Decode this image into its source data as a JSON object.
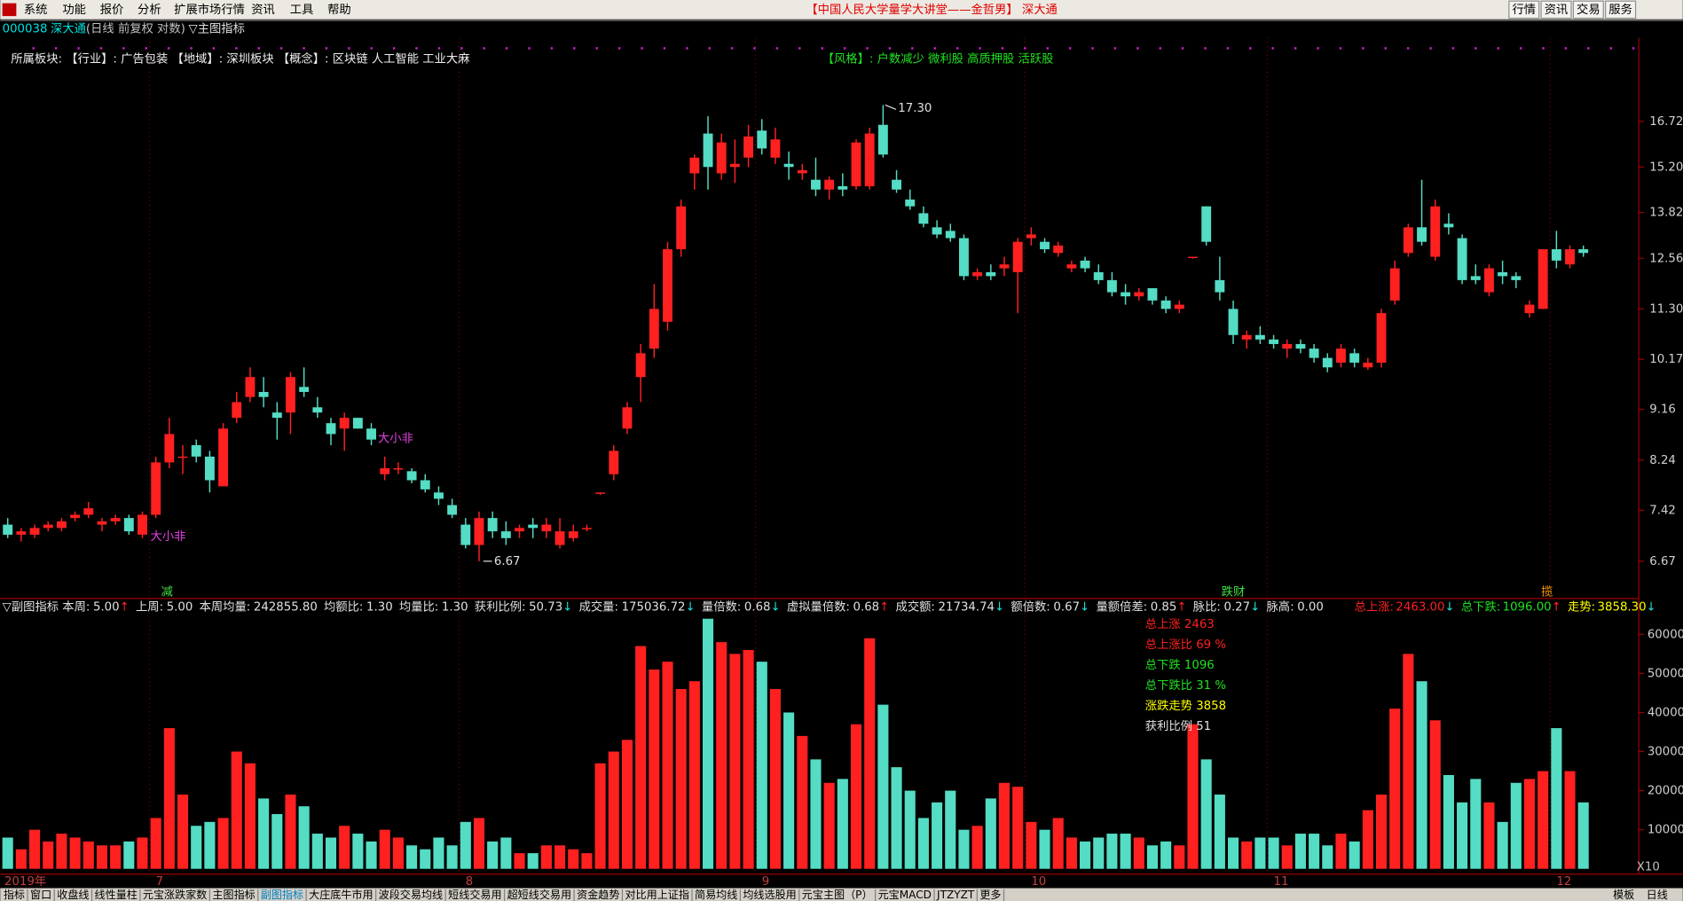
{
  "menu": [
    "系统",
    "功能",
    "报价",
    "分析",
    "扩展市场行情",
    "资讯",
    "工具",
    "帮助"
  ],
  "window_title": "【中国人民大学量学大讲堂——金哲男】 深大通",
  "window_buttons": [
    "行情",
    "资讯",
    "交易",
    "服务"
  ],
  "header": {
    "code": "000038",
    "name": "深大通",
    "mode": "(日线 前复权 对数)",
    "indicator": "▽主图指标"
  },
  "sectors": {
    "text": "所属板块: 【行业】: 广告包装 【地域】: 深圳板块 【概念】: 区块链 人工智能 工业大麻",
    "style": "【风格】: 户数减少 微利股 高质押股 活跃股"
  },
  "chart_data": [
    {
      "type": "candlestick",
      "log": true,
      "up_color": "#ff2020",
      "down_color": "#54dcc4",
      "ylim": [
        6.17,
        19.92
      ],
      "yticks": [
        6.67,
        7.42,
        8.24,
        9.16,
        10.17,
        {
          "value": 11.3,
          "label": "11.30"
        },
        12.56,
        13.82,
        {
          "value": 15.2,
          "label": "15.20"
        },
        16.72
      ],
      "categories": [
        "2019年",
        null,
        null,
        null,
        null,
        null,
        null,
        null,
        null,
        null,
        null,
        "7",
        null,
        null,
        null,
        null,
        null,
        null,
        null,
        null,
        null,
        null,
        null,
        null,
        null,
        null,
        null,
        null,
        null,
        null,
        null,
        null,
        null,
        null,
        "8",
        null,
        null,
        null,
        null,
        null,
        null,
        null,
        null,
        null,
        null,
        null,
        null,
        null,
        null,
        null,
        null,
        null,
        null,
        null,
        null,
        null,
        "9",
        null,
        null,
        null,
        null,
        null,
        null,
        null,
        null,
        null,
        null,
        null,
        null,
        null,
        null,
        null,
        null,
        null,
        null,
        null,
        "10",
        null,
        null,
        null,
        null,
        null,
        null,
        null,
        null,
        null,
        null,
        null,
        null,
        null,
        null,
        null,
        null,
        null,
        "11",
        null,
        null,
        null,
        null,
        null,
        null,
        null,
        null,
        null,
        null,
        null,
        null,
        null,
        null,
        null,
        null,
        null,
        null,
        null,
        null,
        "12",
        null,
        null
      ],
      "ohlc": [
        [
          7.2,
          7.3,
          7.0,
          7.05
        ],
        [
          7.05,
          7.15,
          6.95,
          7.1
        ],
        [
          7.05,
          7.2,
          7.0,
          7.15
        ],
        [
          7.15,
          7.25,
          7.1,
          7.2
        ],
        [
          7.15,
          7.3,
          7.1,
          7.25
        ],
        [
          7.3,
          7.4,
          7.25,
          7.35
        ],
        [
          7.35,
          7.55,
          7.3,
          7.45
        ],
        [
          7.2,
          7.3,
          7.1,
          7.25
        ],
        [
          7.25,
          7.35,
          7.2,
          7.3
        ],
        [
          7.3,
          7.35,
          7.05,
          7.1
        ],
        [
          7.05,
          7.4,
          7.0,
          7.35
        ],
        [
          7.35,
          8.3,
          7.3,
          8.2
        ],
        [
          8.2,
          9.0,
          8.1,
          8.7
        ],
        [
          8.3,
          8.5,
          8.0,
          8.3
        ],
        [
          8.5,
          8.6,
          8.2,
          8.3
        ],
        [
          8.3,
          8.4,
          7.7,
          7.9
        ],
        [
          7.8,
          8.9,
          7.8,
          8.8
        ],
        [
          9.0,
          9.5,
          8.9,
          9.3
        ],
        [
          9.4,
          10.0,
          9.3,
          9.8
        ],
        [
          9.5,
          9.8,
          9.2,
          9.4
        ],
        [
          9.1,
          9.3,
          8.6,
          9.0
        ],
        [
          9.1,
          9.9,
          8.7,
          9.8
        ],
        [
          9.6,
          10.0,
          9.4,
          9.5
        ],
        [
          9.2,
          9.4,
          9.0,
          9.1
        ],
        [
          8.9,
          9.0,
          8.5,
          8.7
        ],
        [
          8.8,
          9.1,
          8.4,
          9.0
        ],
        [
          9.0,
          9.0,
          8.8,
          8.8
        ],
        [
          8.8,
          8.9,
          8.5,
          8.6
        ],
        [
          8.0,
          8.3,
          7.9,
          8.1
        ],
        [
          8.1,
          8.2,
          8.0,
          8.1
        ],
        [
          8.05,
          8.1,
          7.85,
          7.9
        ],
        [
          7.9,
          8.0,
          7.7,
          7.75
        ],
        [
          7.7,
          7.8,
          7.5,
          7.6
        ],
        [
          7.5,
          7.6,
          7.3,
          7.35
        ],
        [
          7.2,
          7.3,
          6.85,
          6.9
        ],
        [
          6.9,
          7.4,
          6.67,
          7.3
        ],
        [
          7.3,
          7.4,
          7.0,
          7.1
        ],
        [
          7.1,
          7.25,
          6.9,
          7.0
        ],
        [
          7.1,
          7.2,
          7.0,
          7.15
        ],
        [
          7.2,
          7.3,
          7.0,
          7.15
        ],
        [
          7.1,
          7.3,
          7.0,
          7.2
        ],
        [
          6.9,
          7.3,
          6.85,
          7.1
        ],
        [
          7.0,
          7.2,
          6.95,
          7.1
        ],
        [
          7.15,
          7.2,
          7.1,
          7.15
        ],
        [
          7.68,
          7.7,
          7.66,
          7.7
        ],
        [
          8.0,
          8.5,
          7.9,
          8.4
        ],
        [
          8.8,
          9.3,
          8.7,
          9.2
        ],
        [
          9.8,
          10.5,
          9.3,
          10.3
        ],
        [
          10.4,
          11.9,
          10.2,
          11.3
        ],
        [
          11.0,
          13.0,
          10.8,
          12.8
        ],
        [
          12.8,
          14.2,
          12.6,
          14.0
        ],
        [
          15.0,
          15.6,
          14.5,
          15.5
        ],
        [
          16.3,
          16.9,
          14.5,
          15.2
        ],
        [
          15.0,
          16.3,
          14.8,
          16.0
        ],
        [
          15.2,
          16.1,
          14.7,
          15.3
        ],
        [
          15.5,
          16.6,
          15.2,
          16.2
        ],
        [
          16.4,
          16.8,
          15.6,
          15.8
        ],
        [
          15.5,
          16.5,
          15.3,
          16.1
        ],
        [
          15.3,
          15.7,
          14.8,
          15.2
        ],
        [
          15.0,
          15.3,
          14.8,
          15.1
        ],
        [
          14.8,
          15.5,
          14.3,
          14.5
        ],
        [
          14.5,
          14.9,
          14.2,
          14.8
        ],
        [
          14.6,
          15.0,
          14.3,
          14.5
        ],
        [
          14.6,
          16.1,
          14.5,
          16.0
        ],
        [
          14.6,
          16.5,
          14.5,
          16.3
        ],
        [
          16.6,
          17.3,
          15.5,
          15.6
        ],
        [
          14.8,
          15.1,
          14.4,
          14.5
        ],
        [
          14.2,
          14.5,
          13.9,
          14.0
        ],
        [
          13.8,
          14.0,
          13.4,
          13.5
        ],
        [
          13.4,
          13.6,
          13.1,
          13.2
        ],
        [
          13.3,
          13.5,
          13.0,
          13.1
        ],
        [
          13.1,
          13.2,
          12.0,
          12.1
        ],
        [
          12.1,
          12.3,
          12.0,
          12.2
        ],
        [
          12.2,
          12.4,
          12.0,
          12.1
        ],
        [
          12.3,
          12.6,
          12.1,
          12.4
        ],
        [
          12.2,
          13.1,
          11.2,
          13.0
        ],
        [
          13.1,
          13.4,
          12.9,
          13.2
        ],
        [
          13.0,
          13.1,
          12.7,
          12.8
        ],
        [
          12.7,
          13.0,
          12.6,
          12.9
        ],
        [
          12.3,
          12.5,
          12.2,
          12.4
        ],
        [
          12.5,
          12.6,
          12.2,
          12.3
        ],
        [
          12.2,
          12.4,
          11.9,
          12.0
        ],
        [
          12.0,
          12.2,
          11.6,
          11.7
        ],
        [
          11.7,
          11.9,
          11.4,
          11.6
        ],
        [
          11.6,
          11.8,
          11.5,
          11.7
        ],
        [
          11.8,
          11.8,
          11.4,
          11.5
        ],
        [
          11.5,
          11.6,
          11.2,
          11.3
        ],
        [
          11.3,
          11.5,
          11.2,
          11.4
        ],
        [
          12.58,
          12.6,
          12.55,
          12.6
        ],
        [
          14.0,
          14.0,
          12.9,
          13.0
        ],
        [
          12.0,
          12.6,
          11.5,
          11.7
        ],
        [
          11.3,
          11.5,
          10.5,
          10.7
        ],
        [
          10.6,
          10.8,
          10.4,
          10.7
        ],
        [
          10.7,
          10.9,
          10.5,
          10.6
        ],
        [
          10.6,
          10.7,
          10.4,
          10.5
        ],
        [
          10.4,
          10.6,
          10.2,
          10.5
        ],
        [
          10.5,
          10.6,
          10.3,
          10.4
        ],
        [
          10.4,
          10.5,
          10.1,
          10.2
        ],
        [
          10.2,
          10.3,
          9.9,
          10.0
        ],
        [
          10.1,
          10.5,
          10.0,
          10.4
        ],
        [
          10.3,
          10.4,
          10.0,
          10.1
        ],
        [
          10.0,
          10.2,
          9.95,
          10.1
        ],
        [
          10.1,
          11.3,
          10.0,
          11.2
        ],
        [
          11.5,
          12.5,
          11.4,
          12.3
        ],
        [
          12.7,
          13.5,
          12.6,
          13.4
        ],
        [
          13.4,
          14.8,
          12.9,
          13.0
        ],
        [
          12.6,
          14.2,
          12.5,
          14.0
        ],
        [
          13.5,
          13.8,
          13.2,
          13.4
        ],
        [
          13.1,
          13.2,
          11.9,
          12.0
        ],
        [
          12.1,
          12.4,
          11.9,
          12.0
        ],
        [
          11.7,
          12.4,
          11.6,
          12.3
        ],
        [
          12.2,
          12.5,
          11.9,
          12.1
        ],
        [
          12.1,
          12.2,
          11.8,
          12.0
        ],
        [
          11.2,
          11.5,
          11.1,
          11.4
        ],
        [
          11.3,
          12.8,
          11.3,
          12.8
        ],
        [
          12.8,
          13.3,
          12.3,
          12.5
        ],
        [
          12.4,
          12.9,
          12.3,
          12.8
        ],
        [
          12.8,
          12.9,
          12.6,
          12.7
        ]
      ],
      "max_label": "17.30",
      "min_label": "6.67",
      "markers": [
        {
          "text": "大小非",
          "color": "#e040e0"
        },
        {
          "text": "大小非",
          "color": "#e040e0"
        },
        {
          "text": "减",
          "color": "#40e040"
        },
        {
          "text": "跌财",
          "color": "#40e040"
        },
        {
          "text": "揽",
          "color": "#ff9900"
        }
      ]
    },
    {
      "type": "bar",
      "ylim": [
        0,
        64500
      ],
      "yticks": [
        10000,
        20000,
        30000,
        40000,
        50000,
        60000
      ],
      "unit_label": "X10",
      "values": [
        8000,
        5000,
        10000,
        7000,
        9000,
        8000,
        7000,
        6000,
        6000,
        7000,
        8000,
        13000,
        36000,
        19000,
        11000,
        12000,
        13000,
        30000,
        27000,
        18000,
        14000,
        19000,
        16000,
        9000,
        8000,
        11000,
        9000,
        7000,
        10000,
        8000,
        6000,
        5000,
        8000,
        6000,
        12000,
        13000,
        7000,
        8000,
        4000,
        4000,
        6000,
        6000,
        5000,
        4000,
        27000,
        30000,
        33000,
        57000,
        51000,
        53000,
        46000,
        48000,
        64000,
        58000,
        55000,
        56000,
        53000,
        46000,
        40000,
        34000,
        28000,
        22000,
        23000,
        37000,
        59000,
        42000,
        26000,
        20000,
        13000,
        17000,
        20000,
        10000,
        11000,
        18000,
        22000,
        21000,
        12000,
        10000,
        13000,
        8000,
        7000,
        8000,
        9000,
        9000,
        8000,
        6000,
        7000,
        6000,
        37000,
        28000,
        19000,
        8000,
        7000,
        8000,
        8000,
        6000,
        9000,
        9000,
        6000,
        9000,
        7000,
        15000,
        19000,
        41000,
        55000,
        48000,
        38000,
        24000,
        17000,
        23000,
        17000,
        12000,
        22000,
        23000,
        25000,
        36000,
        25000,
        17000
      ],
      "header_items": [
        {
          "label": "▽副图指标 本周:",
          "value": "5.00",
          "arrow": "↑"
        },
        {
          "label": "上周:",
          "value": "5.00",
          "arrow": ""
        },
        {
          "label": "本周均量:",
          "value": "242855.80",
          "arrow": ""
        },
        {
          "label": "均额比:",
          "value": "1.30",
          "arrow": ""
        },
        {
          "label": "均量比:",
          "value": "1.30",
          "arrow": ""
        },
        {
          "label": "获利比例:",
          "value": "50.73",
          "arrow": "↓"
        },
        {
          "label": "成交量:",
          "value": "175036.72",
          "arrow": "↓"
        },
        {
          "label": "量倍数:",
          "value": "0.68",
          "arrow": "↓"
        },
        {
          "label": "虚拟量倍数:",
          "value": "0.68",
          "arrow": "↑"
        },
        {
          "label": "成交额:",
          "value": "21734.74",
          "arrow": "↓"
        },
        {
          "label": "额倍数:",
          "value": "0.67",
          "arrow": "↓"
        },
        {
          "label": "量额倍差:",
          "value": "0.85",
          "arrow": "↑"
        },
        {
          "label": "脉比:",
          "value": "0.27",
          "arrow": "↓"
        },
        {
          "label": "脉高:",
          "value": "0.00",
          "arrow": ""
        }
      ],
      "summary_items": [
        {
          "label": "总上涨:",
          "value": "2463.00",
          "arrow": "↓",
          "color": "#ff2020"
        },
        {
          "label": "总下跌:",
          "value": "1096.00",
          "arrow": "↑",
          "color": "#20e020"
        },
        {
          "label": "走势:",
          "value": "3858.30",
          "arrow": "↓",
          "color": "#ffff00"
        }
      ],
      "stats": [
        {
          "text": "总上涨 2463",
          "color": "#ff2020"
        },
        {
          "text": "总上涨比 69 %",
          "color": "#ff2020"
        },
        {
          "text": "总下跌 1096",
          "color": "#20e020"
        },
        {
          "text": "总下跌比 31 %",
          "color": "#20e020"
        },
        {
          "text": "涨跌走势 3858",
          "color": "#ffff00"
        },
        {
          "text": "获利比例 51",
          "color": "#e0e0e0"
        }
      ]
    }
  ],
  "tabs": [
    "指标",
    "窗口",
    "收盘线",
    "线性量柱",
    "元宝涨跌家数",
    "主图指标",
    "副图指标",
    "大庄底牛市用",
    "波段交易均线",
    "短线交易用",
    "超短线交易用",
    "资金趋势",
    "对比用上证指",
    "简易均线",
    "均线选股用",
    "元宝主图（P）",
    "元宝MACD",
    "JTZYZT",
    "更多"
  ],
  "tabs_right": [
    "模板",
    "日线"
  ]
}
